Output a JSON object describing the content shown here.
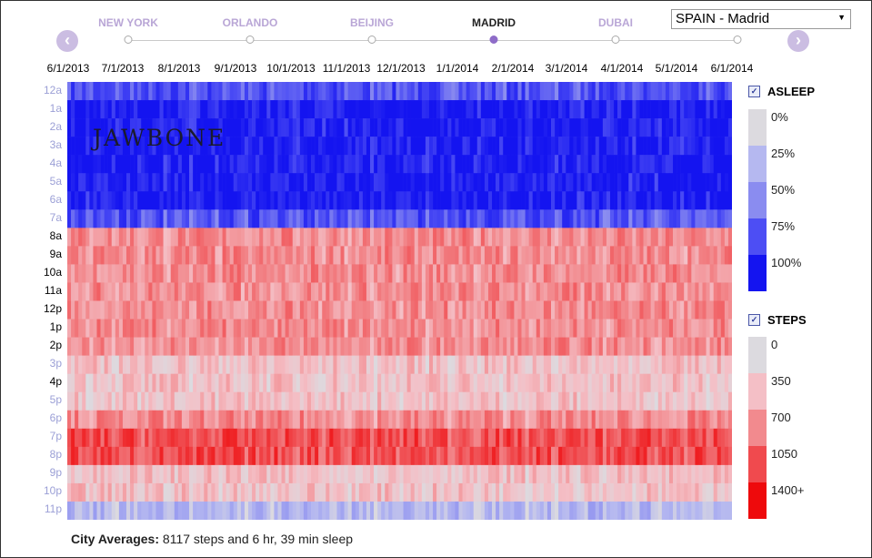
{
  "timeline": {
    "cities": [
      "NEW YORK",
      "ORLANDO",
      "BEIJING",
      "MADRID",
      "DUBAI"
    ],
    "active_index": 3
  },
  "city_select": {
    "value": "SPAIN - Madrid"
  },
  "brand": "JAWBONE",
  "legend": {
    "asleep": {
      "title": "ASLEEP",
      "checked": true,
      "items": [
        {
          "label": "0%",
          "color": "#dcdadf"
        },
        {
          "label": "25%",
          "color": "#b5b8f0"
        },
        {
          "label": "50%",
          "color": "#8a8cf0"
        },
        {
          "label": "75%",
          "color": "#4d4ef4"
        },
        {
          "label": "100%",
          "color": "#1414f0"
        }
      ]
    },
    "steps": {
      "title": "STEPS",
      "checked": true,
      "items": [
        {
          "label": "0",
          "color": "#dcdadf"
        },
        {
          "label": "350",
          "color": "#f4bfc6"
        },
        {
          "label": "700",
          "color": "#f28a8e"
        },
        {
          "label": "1050",
          "color": "#f04a4e"
        },
        {
          "label": "1400+",
          "color": "#ee0a0c"
        }
      ]
    }
  },
  "averages": {
    "label": "City Averages:",
    "text": "8117 steps and 6 hr, 39 min sleep"
  },
  "chart_data": {
    "type": "heatmap",
    "x_tick_labels": [
      "6/1/2013",
      "7/1/2013",
      "8/1/2013",
      "9/1/2013",
      "10/1/2013",
      "11/1/2013",
      "12/1/2013",
      "1/1/2014",
      "2/1/2014",
      "3/1/2014",
      "4/1/2014",
      "5/1/2014",
      "6/1/2014"
    ],
    "y_tick_labels": [
      "12a",
      "1a",
      "2a",
      "3a",
      "4a",
      "5a",
      "6a",
      "7a",
      "8a",
      "9a",
      "10a",
      "11a",
      "12p",
      "1p",
      "2p",
      "3p",
      "4p",
      "5p",
      "6p",
      "7p",
      "8p",
      "9p",
      "10p",
      "11p"
    ],
    "x_range": [
      "6/1/2013",
      "6/30/2014"
    ],
    "hourly_profile": [
      {
        "hour": "12a",
        "metric": "asleep",
        "level": "75%"
      },
      {
        "hour": "1a",
        "metric": "asleep",
        "level": "100%"
      },
      {
        "hour": "2a",
        "metric": "asleep",
        "level": "100%"
      },
      {
        "hour": "3a",
        "metric": "asleep",
        "level": "100%"
      },
      {
        "hour": "4a",
        "metric": "asleep",
        "level": "100%"
      },
      {
        "hour": "5a",
        "metric": "asleep",
        "level": "100%"
      },
      {
        "hour": "6a",
        "metric": "asleep",
        "level": "100%"
      },
      {
        "hour": "7a",
        "metric": "asleep",
        "level": "75%"
      },
      {
        "hour": "8a",
        "metric": "steps",
        "level": "700"
      },
      {
        "hour": "9a",
        "metric": "steps",
        "level": "700"
      },
      {
        "hour": "10a",
        "metric": "steps",
        "level": "700"
      },
      {
        "hour": "11a",
        "metric": "steps",
        "level": "700"
      },
      {
        "hour": "12p",
        "metric": "steps",
        "level": "700"
      },
      {
        "hour": "1p",
        "metric": "steps",
        "level": "700"
      },
      {
        "hour": "2p",
        "metric": "steps",
        "level": "700"
      },
      {
        "hour": "3p",
        "metric": "steps",
        "level": "350"
      },
      {
        "hour": "4p",
        "metric": "steps",
        "level": "350"
      },
      {
        "hour": "5p",
        "metric": "steps",
        "level": "350"
      },
      {
        "hour": "6p",
        "metric": "steps",
        "level": "700"
      },
      {
        "hour": "7p",
        "metric": "steps",
        "level": "1050"
      },
      {
        "hour": "8p",
        "metric": "steps",
        "level": "1050"
      },
      {
        "hour": "9p",
        "metric": "steps",
        "level": "350"
      },
      {
        "hour": "10p",
        "metric": "steps",
        "level": "350"
      },
      {
        "hour": "11p",
        "metric": "asleep",
        "level": "25%"
      }
    ]
  }
}
